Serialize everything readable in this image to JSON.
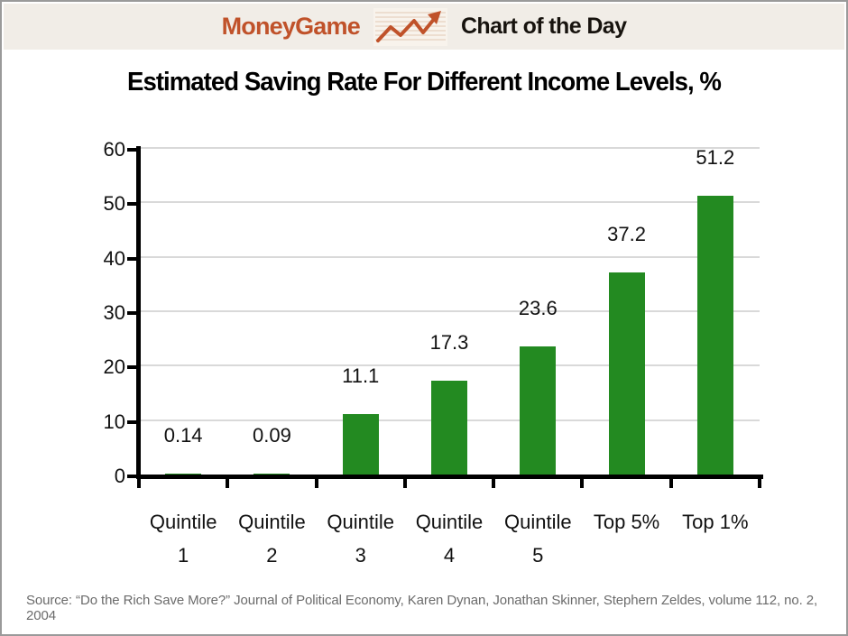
{
  "header": {
    "brand": "MoneyGame",
    "title": "Chart of the Day",
    "icon": "trend-line-icon"
  },
  "title": "Estimated Saving Rate For Different Income Levels, %",
  "chart_data": {
    "type": "bar",
    "title": "Estimated Saving Rate For Different Income Levels, %",
    "categories": [
      "Quintile 1",
      "Quintile 2",
      "Quintile 3",
      "Quintile 4",
      "Quintile 5",
      "Top 5%",
      "Top 1%"
    ],
    "category_lines": [
      [
        "Quintile",
        "1"
      ],
      [
        "Quintile",
        "2"
      ],
      [
        "Quintile",
        "3"
      ],
      [
        "Quintile",
        "4"
      ],
      [
        "Quintile",
        "5"
      ],
      [
        "Top 5%",
        ""
      ],
      [
        "Top 1%",
        ""
      ]
    ],
    "values": [
      0.14,
      0.09,
      11.1,
      17.3,
      23.6,
      37.2,
      51.2
    ],
    "value_labels": [
      "0.14",
      "0.09",
      "11.1",
      "17.3",
      "23.6",
      "37.2",
      "51.2"
    ],
    "xlabel": "",
    "ylabel": "",
    "ylim": [
      0,
      60
    ],
    "yticks": [
      0,
      10,
      20,
      30,
      40,
      50,
      60
    ],
    "grid": true,
    "legend": "none",
    "bar_color": "#238a21"
  },
  "source": "Source: “Do the Rich Save More?” Journal of Political Economy, Karen Dynan, Jonathan Skinner, Stephern Zeldes, volume 112, no. 2, 2004",
  "colors": {
    "accent_orange": "#c0522a",
    "bar_green": "#238a21",
    "header_bg": "#f1ede7",
    "grid_gray": "#d9d9d9",
    "axis_black": "#000000",
    "source_gray": "#6b6b6b",
    "frame_border": "#9a9a9a"
  }
}
